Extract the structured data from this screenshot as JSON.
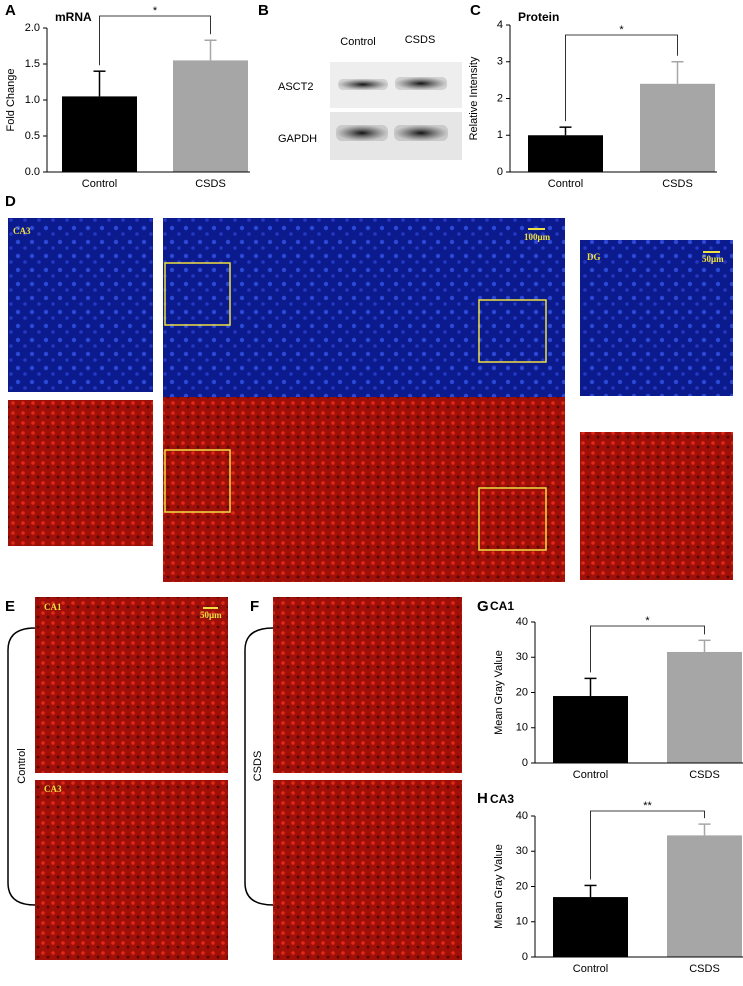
{
  "chart_data": [
    {
      "type": "bar",
      "label": "A",
      "title": "mRNA",
      "ylabel": "Fold Change",
      "categories": [
        "Control",
        "CSDS"
      ],
      "values": [
        1.05,
        1.55
      ],
      "errors": [
        0.35,
        0.28
      ],
      "colors": [
        "#000000",
        "#a6a6a6"
      ],
      "ylim": [
        0,
        2
      ],
      "yticks": [
        {
          "value": 0,
          "label": "0.0"
        },
        {
          "value": 0.5,
          "label": "0.5"
        },
        {
          "value": 1,
          "label": "1.0"
        },
        {
          "value": 1.5,
          "label": "1.5"
        },
        {
          "value": 2,
          "label": "2.0"
        }
      ],
      "significance": "*"
    },
    {
      "type": "bar",
      "label": "C",
      "title": "Protein",
      "ylabel": "Relative Intensity",
      "categories": [
        "Control",
        "CSDS"
      ],
      "values": [
        1.0,
        2.4
      ],
      "errors": [
        0.22,
        0.6
      ],
      "colors": [
        "#000000",
        "#a6a6a6"
      ],
      "ylim": [
        0,
        4
      ],
      "yticks": [
        0,
        1,
        2,
        3,
        4
      ],
      "significance": "*"
    },
    {
      "type": "bar",
      "label": "G",
      "title": "CA1",
      "ylabel": "Mean Gray Value",
      "categories": [
        "Control",
        "CSDS"
      ],
      "values": [
        19,
        31.5
      ],
      "errors": [
        5,
        3.3
      ],
      "colors": [
        "#000000",
        "#a6a6a6"
      ],
      "ylim": [
        0,
        40
      ],
      "yticks": [
        0,
        10,
        20,
        30,
        40
      ],
      "significance": "*"
    },
    {
      "type": "bar",
      "label": "H",
      "title": "CA3",
      "ylabel": "Mean Gray Value",
      "categories": [
        "Control",
        "CSDS"
      ],
      "values": [
        17,
        34.5
      ],
      "errors": [
        3.3,
        3.2
      ],
      "colors": [
        "#000000",
        "#a6a6a6"
      ],
      "ylim": [
        0,
        40
      ],
      "yticks": [
        0,
        10,
        20,
        30,
        40
      ],
      "significance": "**"
    }
  ],
  "panel_b": {
    "label": "B",
    "lanes": [
      "Control",
      "CSDS"
    ],
    "proteins": [
      "ASCT2",
      "GAPDH"
    ]
  },
  "panel_d": {
    "label": "D",
    "region_left": "CA3",
    "region_right": "DG",
    "scale_main": "100μm",
    "scale_inset": "50μm"
  },
  "panel_e": {
    "label": "E",
    "region_top": "CA1",
    "region_bottom": "CA3",
    "scale": "50μm",
    "group": "Control"
  },
  "panel_f": {
    "label": "F",
    "group": "CSDS"
  }
}
